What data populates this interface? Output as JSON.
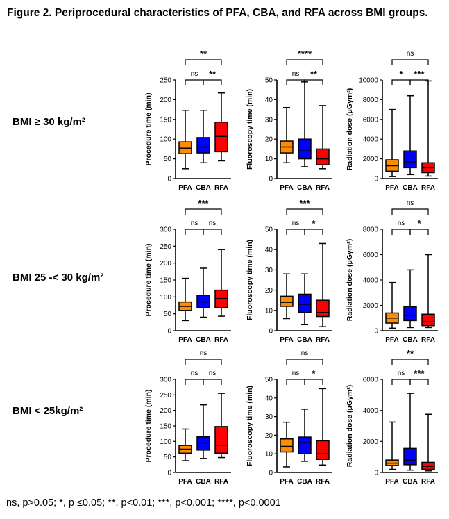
{
  "figure": {
    "title": "Figure 2. Periprocedural characteristics of PFA, CBA, and RFA across BMI groups.",
    "footnote": "ns, p>0.05; *, p ≤0.05; **, p<0.01; ***, p<0.001; ****, p<0.0001"
  },
  "colors": {
    "PFA": "#ff8c00",
    "CBA": "#0000ff",
    "RFA": "#ff0000"
  },
  "row_labels": [
    "BMI ≥ 30 kg/m²",
    "BMI 25 -< 30 kg/m²",
    "BMI < 25kg/m²"
  ],
  "chart_data": [
    {
      "type": "box",
      "group": "BMI ≥ 30 kg/m²",
      "ylabel": "Procedure time (min)",
      "ylim": [
        0,
        250
      ],
      "yticks": [
        0,
        50,
        100,
        150,
        200,
        250
      ],
      "categories": [
        "PFA",
        "CBA",
        "RFA"
      ],
      "boxes": [
        {
          "min": 25,
          "q1": 63,
          "median": 77,
          "q3": 93,
          "max": 173
        },
        {
          "min": 40,
          "q1": 65,
          "median": 80,
          "q3": 104,
          "max": 173
        },
        {
          "min": 45,
          "q1": 68,
          "median": 107,
          "q3": 143,
          "max": 217
        }
      ],
      "comparisons": [
        {
          "a": 0,
          "b": 1,
          "label": "ns"
        },
        {
          "a": 1,
          "b": 2,
          "label": "**"
        },
        {
          "a": 0,
          "b": 2,
          "label": "**"
        }
      ]
    },
    {
      "type": "box",
      "group": "BMI ≥ 30 kg/m²",
      "ylabel": "Fluoroscopy time (min)",
      "ylim": [
        0,
        50
      ],
      "yticks": [
        0,
        10,
        20,
        30,
        40,
        50
      ],
      "categories": [
        "PFA",
        "CBA",
        "RFA"
      ],
      "boxes": [
        {
          "min": 8,
          "q1": 13,
          "median": 16,
          "q3": 19,
          "max": 36
        },
        {
          "min": 6,
          "q1": 10,
          "median": 14,
          "q3": 20,
          "max": 49
        },
        {
          "min": 5,
          "q1": 7,
          "median": 10,
          "q3": 15,
          "max": 37
        }
      ],
      "comparisons": [
        {
          "a": 0,
          "b": 1,
          "label": "ns"
        },
        {
          "a": 1,
          "b": 2,
          "label": "**"
        },
        {
          "a": 0,
          "b": 2,
          "label": "****"
        }
      ]
    },
    {
      "type": "box",
      "group": "BMI ≥ 30 kg/m²",
      "ylabel": "Radiation dose (μGym²)",
      "ylim": [
        0,
        10000
      ],
      "yticks": [
        0,
        2000,
        4000,
        6000,
        8000,
        10000
      ],
      "categories": [
        "PFA",
        "CBA",
        "RFA"
      ],
      "boxes": [
        {
          "min": 200,
          "q1": 750,
          "median": 1300,
          "q3": 1900,
          "max": 7000
        },
        {
          "min": 400,
          "q1": 1100,
          "median": 1700,
          "q3": 2800,
          "max": 8400
        },
        {
          "min": 250,
          "q1": 600,
          "median": 1100,
          "q3": 1600,
          "max": 9900
        }
      ],
      "comparisons": [
        {
          "a": 0,
          "b": 1,
          "label": "*"
        },
        {
          "a": 1,
          "b": 2,
          "label": "***"
        },
        {
          "a": 0,
          "b": 2,
          "label": "ns"
        }
      ]
    },
    {
      "type": "box",
      "group": "BMI 25 -< 30 kg/m²",
      "ylabel": "Procedure time (min)",
      "ylim": [
        0,
        300
      ],
      "yticks": [
        0,
        50,
        100,
        150,
        200,
        250,
        300
      ],
      "categories": [
        "PFA",
        "CBA",
        "RFA"
      ],
      "boxes": [
        {
          "min": 30,
          "q1": 60,
          "median": 72,
          "q3": 85,
          "max": 155
        },
        {
          "min": 40,
          "q1": 68,
          "median": 85,
          "q3": 105,
          "max": 185
        },
        {
          "min": 43,
          "q1": 68,
          "median": 95,
          "q3": 120,
          "max": 240
        }
      ],
      "comparisons": [
        {
          "a": 0,
          "b": 1,
          "label": "ns"
        },
        {
          "a": 1,
          "b": 2,
          "label": "ns"
        },
        {
          "a": 0,
          "b": 2,
          "label": "***"
        }
      ]
    },
    {
      "type": "box",
      "group": "BMI 25 -< 30 kg/m²",
      "ylabel": "Fluoroscopy time (min)",
      "ylim": [
        0,
        50
      ],
      "yticks": [
        0,
        10,
        20,
        30,
        40,
        50
      ],
      "categories": [
        "PFA",
        "CBA",
        "RFA"
      ],
      "boxes": [
        {
          "min": 6,
          "q1": 12,
          "median": 14,
          "q3": 17,
          "max": 28
        },
        {
          "min": 3,
          "q1": 9,
          "median": 13,
          "q3": 18,
          "max": 28
        },
        {
          "min": 2,
          "q1": 7,
          "median": 9,
          "q3": 15,
          "max": 43
        }
      ],
      "comparisons": [
        {
          "a": 0,
          "b": 1,
          "label": "ns"
        },
        {
          "a": 1,
          "b": 2,
          "label": "*"
        },
        {
          "a": 0,
          "b": 2,
          "label": "***"
        }
      ]
    },
    {
      "type": "box",
      "group": "BMI 25 -< 30 kg/m²",
      "ylabel": "Radiation dose (μGym²)",
      "ylim": [
        0,
        8000
      ],
      "yticks": [
        0,
        2000,
        4000,
        6000,
        8000
      ],
      "categories": [
        "PFA",
        "CBA",
        "RFA"
      ],
      "boxes": [
        {
          "min": 200,
          "q1": 600,
          "median": 1000,
          "q3": 1400,
          "max": 3800
        },
        {
          "min": 250,
          "q1": 800,
          "median": 1200,
          "q3": 1900,
          "max": 4800
        },
        {
          "min": 250,
          "q1": 400,
          "median": 700,
          "q3": 1300,
          "max": 6000
        }
      ],
      "comparisons": [
        {
          "a": 0,
          "b": 1,
          "label": "ns"
        },
        {
          "a": 1,
          "b": 2,
          "label": "*"
        },
        {
          "a": 0,
          "b": 2,
          "label": "ns"
        }
      ]
    },
    {
      "type": "box",
      "group": "BMI < 25kg/m²",
      "ylabel": "Procedure time (min)",
      "ylim": [
        0,
        300
      ],
      "yticks": [
        0,
        50,
        100,
        150,
        200,
        250,
        300
      ],
      "categories": [
        "PFA",
        "CBA",
        "RFA"
      ],
      "boxes": [
        {
          "min": 38,
          "q1": 62,
          "median": 75,
          "q3": 87,
          "max": 140
        },
        {
          "min": 45,
          "q1": 72,
          "median": 95,
          "q3": 115,
          "max": 218
        },
        {
          "min": 48,
          "q1": 62,
          "median": 88,
          "q3": 148,
          "max": 255
        }
      ],
      "comparisons": [
        {
          "a": 0,
          "b": 1,
          "label": "ns"
        },
        {
          "a": 1,
          "b": 2,
          "label": "ns"
        },
        {
          "a": 0,
          "b": 2,
          "label": "ns"
        }
      ]
    },
    {
      "type": "box",
      "group": "BMI < 25kg/m²",
      "ylabel": "Fluoroscopy time (min)",
      "ylim": [
        0,
        50
      ],
      "yticks": [
        0,
        10,
        20,
        30,
        40,
        50
      ],
      "categories": [
        "PFA",
        "CBA",
        "RFA"
      ],
      "boxes": [
        {
          "min": 3,
          "q1": 11,
          "median": 14,
          "q3": 18,
          "max": 27
        },
        {
          "min": 6,
          "q1": 10,
          "median": 16,
          "q3": 19,
          "max": 34
        },
        {
          "min": 4,
          "q1": 7,
          "median": 10,
          "q3": 17,
          "max": 45
        }
      ],
      "comparisons": [
        {
          "a": 0,
          "b": 1,
          "label": "ns"
        },
        {
          "a": 1,
          "b": 2,
          "label": "*"
        },
        {
          "a": 0,
          "b": 2,
          "label": "ns"
        }
      ]
    },
    {
      "type": "box",
      "group": "BMI < 25kg/m²",
      "ylabel": "Radiation dose (μGym²)",
      "ylim": [
        0,
        6000
      ],
      "yticks": [
        0,
        2000,
        4000,
        6000
      ],
      "categories": [
        "PFA",
        "CBA",
        "RFA"
      ],
      "boxes": [
        {
          "min": 200,
          "q1": 450,
          "median": 600,
          "q3": 800,
          "max": 3250
        },
        {
          "min": 150,
          "q1": 500,
          "median": 800,
          "q3": 1550,
          "max": 5100
        },
        {
          "min": 100,
          "q1": 200,
          "median": 400,
          "q3": 650,
          "max": 3750
        }
      ],
      "comparisons": [
        {
          "a": 0,
          "b": 1,
          "label": "ns"
        },
        {
          "a": 1,
          "b": 2,
          "label": "***"
        },
        {
          "a": 0,
          "b": 2,
          "label": "**"
        }
      ]
    }
  ]
}
